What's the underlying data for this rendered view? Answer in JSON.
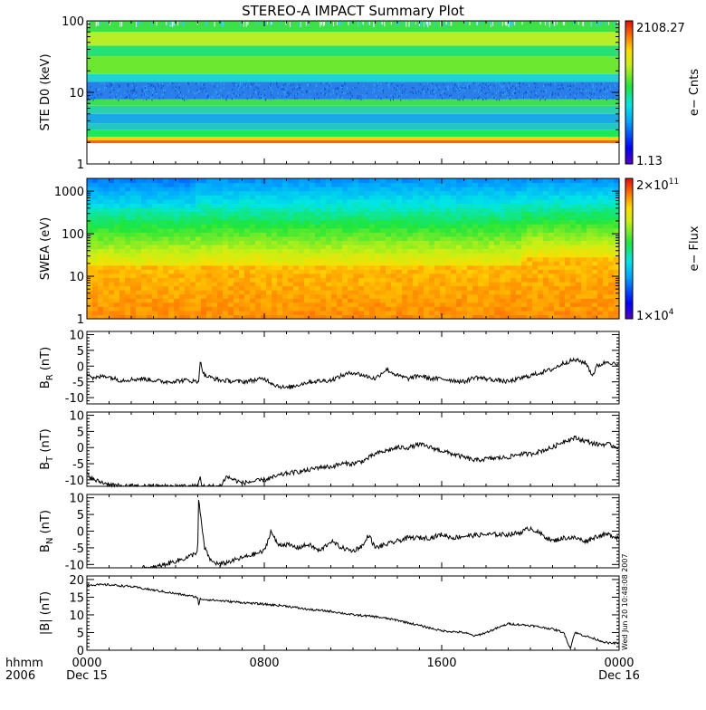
{
  "chart_data": {
    "title": "STEREO-A IMPACT Summary Plot",
    "x_axis": {
      "ticks": [
        "0000",
        "0800",
        "1600",
        "0000"
      ],
      "tick_hours": [
        0,
        8,
        16,
        24
      ],
      "dates": [
        {
          "label": "Dec 15",
          "hour": 0
        },
        {
          "label": "Dec 16",
          "hour": 24
        }
      ],
      "corner_labels": [
        "hhmm",
        "2006"
      ],
      "range_hours": [
        0,
        24
      ]
    },
    "side_stamp": "Wed Jun 20 10:48:08 2007",
    "panels": [
      {
        "id": "ste",
        "type": "heatmap",
        "ylabel": "STE D0 (keV)",
        "yscale": "log",
        "ylim": [
          1,
          100
        ],
        "yticks": [
          "1",
          "10",
          "100"
        ],
        "colorbar": {
          "label": "e− Cnts",
          "max_label": "2108.27",
          "min_label": "1.13",
          "scale": "log"
        },
        "bands": [
          {
            "from": 1.95,
            "to": 2.15,
            "color": "#ff6600"
          },
          {
            "from": 2.15,
            "to": 2.4,
            "color": "#ffd000"
          },
          {
            "from": 2.4,
            "to": 3.0,
            "color": "#1ee85a"
          },
          {
            "from": 3.0,
            "to": 3.7,
            "color": "#22c6c6"
          },
          {
            "from": 3.7,
            "to": 5.0,
            "color": "#1aa8e6"
          },
          {
            "from": 5.0,
            "to": 6.5,
            "color": "#2ccfb0"
          },
          {
            "from": 6.5,
            "to": 8.0,
            "color": "#3fe050"
          },
          {
            "from": 8.0,
            "to": 14.0,
            "color": "#2a7ee8"
          },
          {
            "from": 14.0,
            "to": 18.0,
            "color": "#22d2d2"
          },
          {
            "from": 18.0,
            "to": 32.0,
            "color": "#6ce830"
          },
          {
            "from": 32.0,
            "to": 45.0,
            "color": "#28e070"
          },
          {
            "from": 45.0,
            "to": 70.0,
            "color": "#b8ee28"
          },
          {
            "from": 70.0,
            "to": 100.0,
            "color": "#3ee048"
          }
        ]
      },
      {
        "id": "swea",
        "type": "heatmap",
        "ylabel": "SWEA (eV)",
        "yscale": "log",
        "ylim": [
          1,
          2000
        ],
        "yticks": [
          "1",
          "10",
          "100",
          "1000"
        ],
        "colorbar": {
          "label": "e− Flux",
          "max_label": "2×10",
          "max_exp": "11",
          "min_label": "1×10",
          "min_exp": "4",
          "scale": "log"
        }
      },
      {
        "id": "br",
        "type": "line",
        "ylabel": "B",
        "ylabel_sub": "R",
        "ylabel_unit": " (nT)",
        "ylim": [
          -12,
          11
        ],
        "yticks": [
          -10,
          -5,
          0,
          5,
          10
        ],
        "keypoints": [
          [
            0,
            -2
          ],
          [
            0.3,
            -4
          ],
          [
            0.8,
            -3
          ],
          [
            1.5,
            -4.5
          ],
          [
            2.5,
            -4
          ],
          [
            3.5,
            -5
          ],
          [
            4.5,
            -4.5
          ],
          [
            5,
            -5
          ],
          [
            5.05,
            -4
          ],
          [
            5.1,
            1.5
          ],
          [
            5.3,
            -3
          ],
          [
            6,
            -4.5
          ],
          [
            7,
            -5
          ],
          [
            8,
            -4
          ],
          [
            8.5,
            -6
          ],
          [
            9,
            -7
          ],
          [
            9.5,
            -6
          ],
          [
            10,
            -5
          ],
          [
            11,
            -4.5
          ],
          [
            11.5,
            -3
          ],
          [
            12,
            -2
          ],
          [
            12.5,
            -3
          ],
          [
            13,
            -4
          ],
          [
            13.5,
            -1
          ],
          [
            14,
            -3
          ],
          [
            14.5,
            -4
          ],
          [
            15,
            -3
          ],
          [
            15.5,
            -4
          ],
          [
            16,
            -4
          ],
          [
            17,
            -5
          ],
          [
            17.5,
            -3.5
          ],
          [
            18,
            -4
          ],
          [
            19,
            -5
          ],
          [
            19.5,
            -4
          ],
          [
            20,
            -3
          ],
          [
            20.5,
            -2
          ],
          [
            21,
            -1
          ],
          [
            21.5,
            1
          ],
          [
            22,
            2
          ],
          [
            22.5,
            1
          ],
          [
            22.8,
            -3
          ],
          [
            23,
            0
          ],
          [
            23.5,
            1.5
          ],
          [
            24,
            0
          ]
        ]
      },
      {
        "id": "bt",
        "type": "line",
        "ylabel": "B",
        "ylabel_sub": "T",
        "ylabel_unit": " (nT)",
        "ylim": [
          -12,
          11
        ],
        "yticks": [
          -10,
          -5,
          0,
          5,
          10
        ],
        "keypoints": [
          [
            0,
            -8
          ],
          [
            0.3,
            -10
          ],
          [
            0.8,
            -11
          ],
          [
            1.5,
            -12
          ],
          [
            2.5,
            -12
          ],
          [
            4,
            -12
          ],
          [
            5,
            -12
          ],
          [
            5.1,
            -9
          ],
          [
            5.2,
            -12
          ],
          [
            6,
            -12
          ],
          [
            6.3,
            -9
          ],
          [
            7,
            -11
          ],
          [
            8,
            -10
          ],
          [
            8.5,
            -9
          ],
          [
            9,
            -8
          ],
          [
            9.5,
            -7.5
          ],
          [
            10,
            -7
          ],
          [
            10.5,
            -6
          ],
          [
            11,
            -6
          ],
          [
            11.5,
            -5
          ],
          [
            12,
            -5
          ],
          [
            12.5,
            -4
          ],
          [
            13,
            -2
          ],
          [
            13.5,
            -1
          ],
          [
            14,
            0
          ],
          [
            14.5,
            0
          ],
          [
            15,
            1
          ],
          [
            15.5,
            0
          ],
          [
            16,
            -1
          ],
          [
            16.5,
            -2
          ],
          [
            17,
            -3
          ],
          [
            17.5,
            -4
          ],
          [
            18,
            -3.5
          ],
          [
            19,
            -3
          ],
          [
            19.5,
            -2
          ],
          [
            20,
            -2
          ],
          [
            20.5,
            -1
          ],
          [
            21,
            0
          ],
          [
            21.5,
            2
          ],
          [
            22,
            3
          ],
          [
            22.5,
            2
          ],
          [
            23,
            1
          ],
          [
            23.5,
            1
          ],
          [
            24,
            0
          ]
        ]
      },
      {
        "id": "bn",
        "type": "line",
        "ylabel": "B",
        "ylabel_sub": "N",
        "ylabel_unit": " (nT)",
        "ylim": [
          -11,
          11
        ],
        "yticks": [
          -10,
          -5,
          0,
          5,
          10
        ],
        "keypoints": [
          [
            2.5,
            -11
          ],
          [
            3,
            -11
          ],
          [
            3.5,
            -10
          ],
          [
            4,
            -9
          ],
          [
            4.5,
            -8
          ],
          [
            4.8,
            -7
          ],
          [
            5,
            -6
          ],
          [
            5.02,
            10
          ],
          [
            5.1,
            6
          ],
          [
            5.3,
            -5
          ],
          [
            5.6,
            -9
          ],
          [
            6,
            -10
          ],
          [
            6.5,
            -9
          ],
          [
            7,
            -8
          ],
          [
            7.5,
            -7
          ],
          [
            8,
            -6
          ],
          [
            8.3,
            0
          ],
          [
            8.6,
            -4
          ],
          [
            9,
            -4
          ],
          [
            9.5,
            -5
          ],
          [
            10,
            -4
          ],
          [
            10.5,
            -6
          ],
          [
            11,
            -3
          ],
          [
            11.5,
            -5
          ],
          [
            12,
            -6
          ],
          [
            12.5,
            -4
          ],
          [
            12.7,
            -1
          ],
          [
            13,
            -5
          ],
          [
            13.5,
            -4
          ],
          [
            14,
            -3
          ],
          [
            14.5,
            -2
          ],
          [
            15,
            -2
          ],
          [
            15.5,
            -2
          ],
          [
            16,
            -1
          ],
          [
            16.5,
            -2
          ],
          [
            17,
            -1.5
          ],
          [
            18,
            -1
          ],
          [
            19,
            -1
          ],
          [
            19.5,
            -0.5
          ],
          [
            20,
            1
          ],
          [
            20.5,
            -1
          ],
          [
            21,
            -3
          ],
          [
            21.5,
            -2
          ],
          [
            22,
            -2
          ],
          [
            22.5,
            -3
          ],
          [
            23,
            -1.5
          ],
          [
            23.5,
            -1
          ],
          [
            24,
            -2
          ]
        ]
      },
      {
        "id": "bmag",
        "type": "line",
        "ylabel": "|B| (nT)",
        "ylim": [
          0,
          21
        ],
        "yticks": [
          0,
          5,
          10,
          15,
          20
        ],
        "keypoints": [
          [
            0,
            18.5
          ],
          [
            1,
            18.5
          ],
          [
            2,
            18
          ],
          [
            3,
            17
          ],
          [
            4,
            16
          ],
          [
            5,
            15
          ],
          [
            5.05,
            12
          ],
          [
            5.1,
            14.5
          ],
          [
            6,
            14
          ],
          [
            7,
            13.5
          ],
          [
            8,
            13
          ],
          [
            9,
            12.5
          ],
          [
            10,
            11.5
          ],
          [
            11,
            11
          ],
          [
            12,
            10
          ],
          [
            13,
            9.5
          ],
          [
            14,
            8.5
          ],
          [
            15,
            7
          ],
          [
            16,
            5.5
          ],
          [
            17,
            5
          ],
          [
            17.5,
            4
          ],
          [
            18,
            5
          ],
          [
            19,
            7.5
          ],
          [
            20,
            7
          ],
          [
            21,
            6
          ],
          [
            21.5,
            5
          ],
          [
            21.8,
            0.5
          ],
          [
            22,
            5
          ],
          [
            23,
            3
          ],
          [
            23.5,
            2
          ],
          [
            24,
            2
          ]
        ]
      }
    ]
  }
}
